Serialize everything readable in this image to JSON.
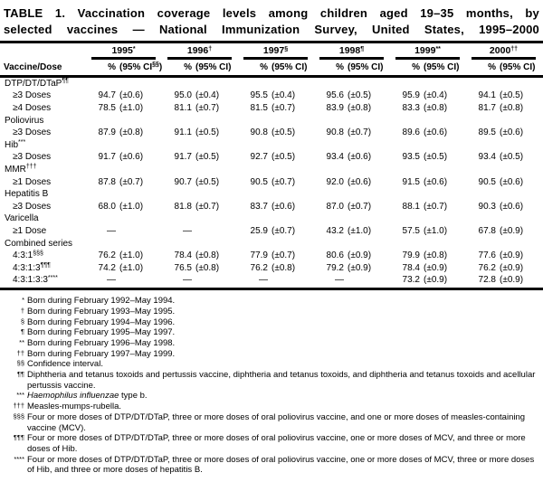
{
  "title": {
    "line1": "TABLE 1. Vaccination coverage levels among children aged 19–35 months, by",
    "line2": "selected vaccines — National Immunization Survey, United States, 1995–2000"
  },
  "header": {
    "vaccine_dose_label": "Vaccine/Dose",
    "years": [
      {
        "year": "1995",
        "marker": "*",
        "pct": "%",
        "ci": "(95% CI",
        "ci_sup": "§§",
        "ci_close": ")"
      },
      {
        "year": "1996",
        "marker": "†",
        "pct": "%",
        "ci": "(95% CI)",
        "ci_sup": "",
        "ci_close": ""
      },
      {
        "year": "1997",
        "marker": "§",
        "pct": "%",
        "ci": "(95% CI)",
        "ci_sup": "",
        "ci_close": ""
      },
      {
        "year": "1998",
        "marker": "¶",
        "pct": "%",
        "ci": "(95% CI)",
        "ci_sup": "",
        "ci_close": ""
      },
      {
        "year": "1999",
        "marker": "**",
        "pct": "%",
        "ci": "(95% CI)",
        "ci_sup": "",
        "ci_close": ""
      },
      {
        "year": "2000",
        "marker": "††",
        "pct": "%",
        "ci": "(95% CI)",
        "ci_sup": "",
        "ci_close": ""
      }
    ]
  },
  "rows": [
    {
      "type": "group",
      "label": "DTP/DT/DTaP",
      "marker": "¶¶"
    },
    {
      "type": "data",
      "label": "≥3 Doses",
      "marker": "",
      "values": [
        [
          "94.7",
          "(±0.6)"
        ],
        [
          "95.0",
          "(±0.4)"
        ],
        [
          "95.5",
          "(±0.4)"
        ],
        [
          "95.6",
          "(±0.5)"
        ],
        [
          "95.9",
          "(±0.4)"
        ],
        [
          "94.1",
          "(±0.5)"
        ]
      ]
    },
    {
      "type": "data",
      "label": "≥4 Doses",
      "marker": "",
      "values": [
        [
          "78.5",
          "(±1.0)"
        ],
        [
          "81.1",
          "(±0.7)"
        ],
        [
          "81.5",
          "(±0.7)"
        ],
        [
          "83.9",
          "(±0.8)"
        ],
        [
          "83.3",
          "(±0.8)"
        ],
        [
          "81.7",
          "(±0.8)"
        ]
      ]
    },
    {
      "type": "group",
      "label": "Poliovirus",
      "marker": ""
    },
    {
      "type": "data",
      "label": "≥3 Doses",
      "marker": "",
      "values": [
        [
          "87.9",
          "(±0.8)"
        ],
        [
          "91.1",
          "(±0.5)"
        ],
        [
          "90.8",
          "(±0.5)"
        ],
        [
          "90.8",
          "(±0.7)"
        ],
        [
          "89.6",
          "(±0.6)"
        ],
        [
          "89.5",
          "(±0.6)"
        ]
      ]
    },
    {
      "type": "group",
      "label": "Hib",
      "marker": "***"
    },
    {
      "type": "data",
      "label": "≥3 Doses",
      "marker": "",
      "values": [
        [
          "91.7",
          "(±0.6)"
        ],
        [
          "91.7",
          "(±0.5)"
        ],
        [
          "92.7",
          "(±0.5)"
        ],
        [
          "93.4",
          "(±0.6)"
        ],
        [
          "93.5",
          "(±0.5)"
        ],
        [
          "93.4",
          "(±0.5)"
        ]
      ]
    },
    {
      "type": "group",
      "label": "MMR",
      "marker": "†††"
    },
    {
      "type": "data",
      "label": "≥1 Doses",
      "marker": "",
      "values": [
        [
          "87.8",
          "(±0.7)"
        ],
        [
          "90.7",
          "(±0.5)"
        ],
        [
          "90.5",
          "(±0.7)"
        ],
        [
          "92.0",
          "(±0.6)"
        ],
        [
          "91.5",
          "(±0.6)"
        ],
        [
          "90.5",
          "(±0.6)"
        ]
      ]
    },
    {
      "type": "group",
      "label": "Hepatitis B",
      "marker": ""
    },
    {
      "type": "data",
      "label": "≥3 Doses",
      "marker": "",
      "values": [
        [
          "68.0",
          "(±1.0)"
        ],
        [
          "81.8",
          "(±0.7)"
        ],
        [
          "83.7",
          "(±0.6)"
        ],
        [
          "87.0",
          "(±0.7)"
        ],
        [
          "88.1",
          "(±0.7)"
        ],
        [
          "90.3",
          "(±0.6)"
        ]
      ]
    },
    {
      "type": "group",
      "label": "Varicella",
      "marker": ""
    },
    {
      "type": "data",
      "label": "≥1 Dose",
      "marker": "",
      "values": [
        [
          "—",
          ""
        ],
        [
          "—",
          ""
        ],
        [
          "25.9",
          "(±0.7)"
        ],
        [
          "43.2",
          "(±1.0)"
        ],
        [
          "57.5",
          "(±1.0)"
        ],
        [
          "67.8",
          "(±0.9)"
        ]
      ]
    },
    {
      "type": "group",
      "label": "Combined series",
      "marker": ""
    },
    {
      "type": "data",
      "label": "4:3:1",
      "marker": "§§§",
      "values": [
        [
          "76.2",
          "(±1.0)"
        ],
        [
          "78.4",
          "(±0.8)"
        ],
        [
          "77.9",
          "(±0.7)"
        ],
        [
          "80.6",
          "(±0.9)"
        ],
        [
          "79.9",
          "(±0.8)"
        ],
        [
          "77.6",
          "(±0.9)"
        ]
      ]
    },
    {
      "type": "data",
      "label": "4:3:1:3",
      "marker": "¶¶¶",
      "values": [
        [
          "74.2",
          "(±1.0)"
        ],
        [
          "76.5",
          "(±0.8)"
        ],
        [
          "76.2",
          "(±0.8)"
        ],
        [
          "79.2",
          "(±0.9)"
        ],
        [
          "78.4",
          "(±0.9)"
        ],
        [
          "76.2",
          "(±0.9)"
        ]
      ]
    },
    {
      "type": "data",
      "label": "4:3:1:3:3",
      "marker": "****",
      "values": [
        [
          "—",
          ""
        ],
        [
          "—",
          ""
        ],
        [
          "—",
          ""
        ],
        [
          "—",
          ""
        ],
        [
          "73.2",
          "(±0.9)"
        ],
        [
          "72.8",
          "(±0.9)"
        ]
      ]
    }
  ],
  "footnotes": [
    {
      "marker": "*",
      "text": "Born during February 1992–May 1994."
    },
    {
      "marker": "†",
      "text": "Born during February 1993–May 1995."
    },
    {
      "marker": "§",
      "text": "Born during February 1994–May 1996."
    },
    {
      "marker": "¶",
      "text": "Born during February 1995–May 1997."
    },
    {
      "marker": "**",
      "text": "Born during February 1996–May 1998."
    },
    {
      "marker": "††",
      "text": "Born during February 1997–May 1999."
    },
    {
      "marker": "§§",
      "text": "Confidence interval."
    },
    {
      "marker": "¶¶",
      "text": "Diphtheria and tetanus toxoids and pertussis vaccine, diphtheria and tetanus toxoids, and diphtheria and tetanus toxoids and acellular pertussis vaccine."
    },
    {
      "marker": "***",
      "italic": "Haemophilus influenzae",
      "text": " type b."
    },
    {
      "marker": "†††",
      "text": "Measles-mumps-rubella."
    },
    {
      "marker": "§§§",
      "text": "Four or more doses of DTP/DT/DTaP, three or more doses of oral poliovirus vaccine, and one or more doses of measles-containing vaccine (MCV)."
    },
    {
      "marker": "¶¶¶",
      "text": "Four or more doses of DTP/DT/DTaP, three or more doses of oral poliovirus vaccine, one or more doses of MCV, and three or more doses of Hib."
    },
    {
      "marker": "****",
      "text": "Four or more doses of DTP/DT/DTaP, three or more doses of oral poliovirus vaccine, one or more doses of MCV, three or more doses of Hib, and three or more doses of hepatitis B."
    }
  ],
  "colors": {
    "text": "#000000",
    "background": "#ffffff"
  }
}
